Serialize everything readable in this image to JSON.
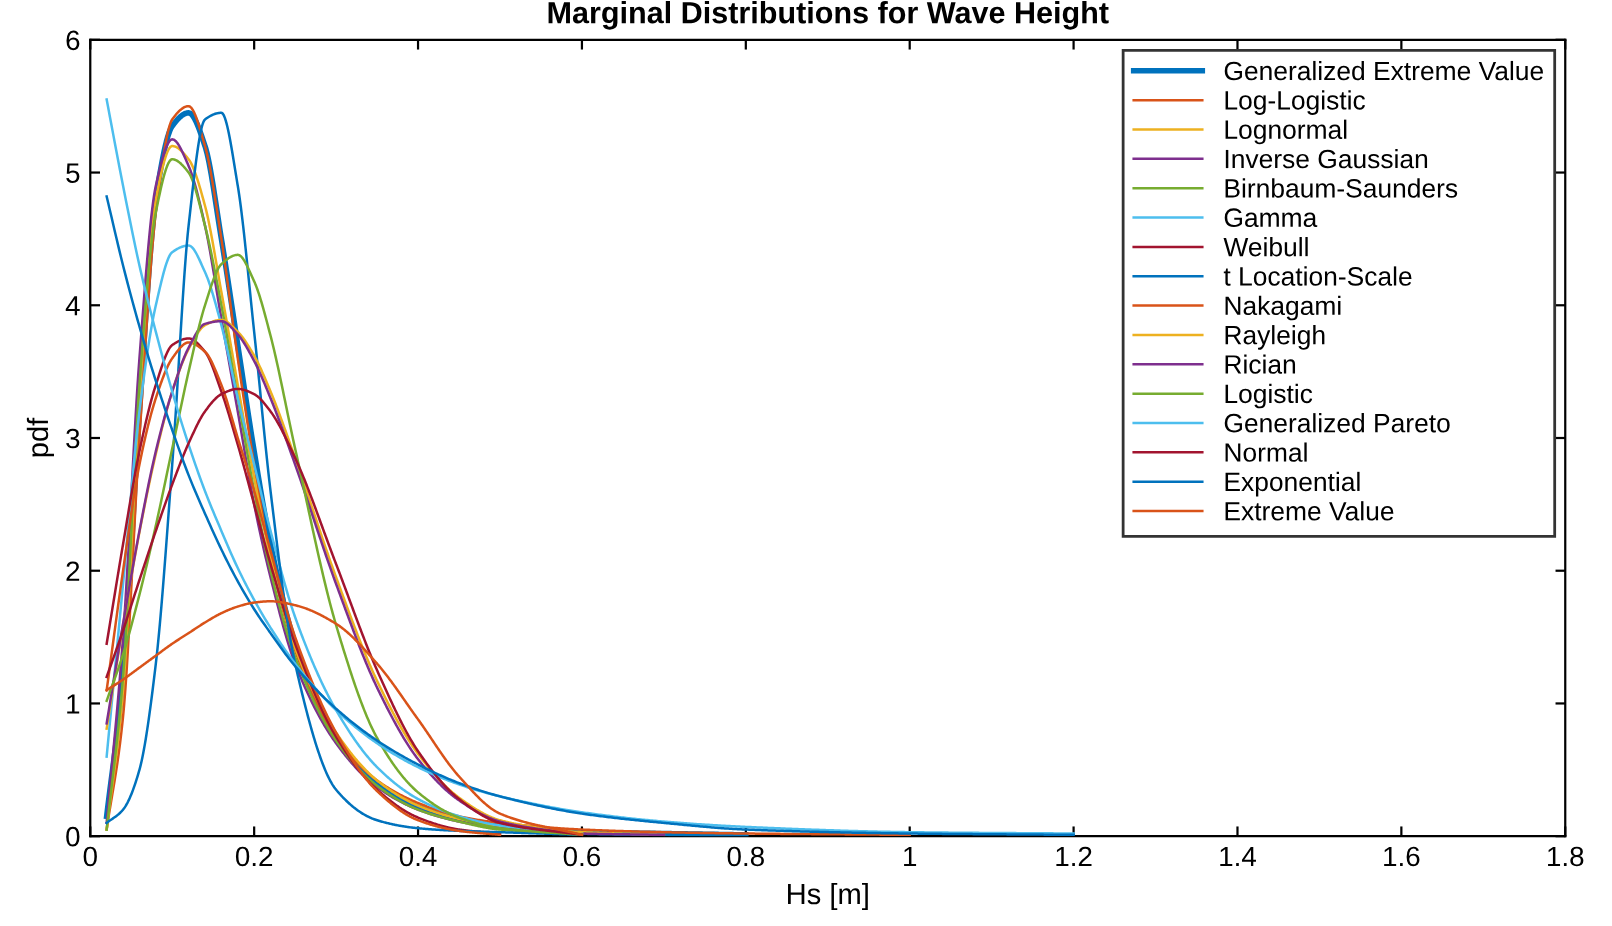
{
  "chart_data": {
    "type": "line",
    "title": "Marginal Distributions for Wave Height",
    "xlabel": "Hs [m]",
    "ylabel": "pdf",
    "xlim": [
      0,
      1.8
    ],
    "ylim": [
      0,
      6
    ],
    "xticks": [
      0,
      0.2,
      0.4,
      0.6,
      0.8,
      1,
      1.2,
      1.4,
      1.6,
      1.8
    ],
    "yticks": [
      0,
      1,
      2,
      3,
      4,
      5,
      6
    ],
    "grid": false,
    "legend": "top right",
    "marker": "none",
    "line_style": "solid",
    "x": [
      0.02,
      0.04,
      0.06,
      0.08,
      0.1,
      0.12,
      0.14,
      0.16,
      0.18,
      0.2,
      0.22,
      0.25,
      0.3,
      0.35,
      0.4,
      0.45,
      0.5,
      0.6,
      0.7,
      0.8,
      1.0,
      1.2
    ],
    "series": [
      {
        "name": "Generalized Extreme Value",
        "color": "#0072bd",
        "values": [
          0.15,
          1.2,
          3.2,
          4.8,
          5.35,
          5.45,
          5.2,
          4.5,
          3.7,
          2.9,
          2.2,
          1.45,
          0.75,
          0.4,
          0.22,
          0.13,
          0.08,
          0.03,
          0.02,
          0.01,
          null,
          null
        ]
      },
      {
        "name": "Log-Logistic",
        "color": "#d95319",
        "values": [
          0.05,
          0.9,
          3.0,
          4.7,
          5.4,
          5.5,
          5.2,
          4.5,
          3.6,
          2.8,
          2.1,
          1.4,
          0.75,
          0.42,
          0.25,
          0.15,
          0.1,
          0.05,
          0.03,
          0.02,
          0.01,
          null
        ]
      },
      {
        "name": "Lognormal",
        "color": "#edb120",
        "values": [
          0.05,
          1.1,
          3.3,
          4.8,
          5.2,
          5.1,
          4.75,
          4.1,
          3.4,
          2.7,
          2.1,
          1.42,
          0.78,
          0.42,
          0.23,
          0.13,
          0.07,
          0.03,
          0.01,
          null,
          null,
          null
        ]
      },
      {
        "name": "Inverse Gaussian",
        "color": "#7e2f8e",
        "values": [
          0.1,
          1.5,
          3.6,
          4.9,
          5.25,
          5.05,
          4.6,
          3.9,
          3.2,
          2.5,
          1.95,
          1.3,
          0.7,
          0.37,
          0.2,
          0.11,
          0.06,
          0.02,
          0.01,
          null,
          null,
          null
        ]
      },
      {
        "name": "Birnbaum-Saunders",
        "color": "#77ac30",
        "values": [
          0.05,
          1.2,
          3.4,
          4.7,
          5.1,
          5.0,
          4.6,
          4.0,
          3.3,
          2.6,
          2.0,
          1.35,
          0.72,
          0.38,
          0.2,
          0.11,
          0.05,
          0.02,
          null,
          null,
          null,
          null
        ]
      },
      {
        "name": "Gamma",
        "color": "#4dbeee",
        "values": [
          0.6,
          1.9,
          3.2,
          4.0,
          4.4,
          4.45,
          4.25,
          3.85,
          3.3,
          2.8,
          2.3,
          1.65,
          0.95,
          0.52,
          0.28,
          0.15,
          0.08,
          0.02,
          null,
          null,
          null,
          null
        ]
      },
      {
        "name": "Weibull",
        "color": "#a2142f",
        "values": [
          1.45,
          2.2,
          2.9,
          3.4,
          3.7,
          3.75,
          3.65,
          3.35,
          2.95,
          2.5,
          2.05,
          1.45,
          0.75,
          0.35,
          0.14,
          0.05,
          0.02,
          null,
          null,
          null,
          null,
          null
        ]
      },
      {
        "name": "t Location-Scale",
        "color": "#0072bd",
        "values": [
          0.1,
          0.2,
          0.5,
          1.3,
          2.8,
          4.6,
          5.4,
          5.45,
          4.9,
          3.8,
          2.6,
          1.3,
          0.35,
          0.12,
          0.06,
          0.04,
          0.03,
          0.01,
          null,
          null,
          null,
          null
        ]
      },
      {
        "name": "Nakagami",
        "color": "#d95319",
        "values": [
          1.1,
          2.0,
          2.8,
          3.3,
          3.6,
          3.72,
          3.65,
          3.4,
          3.0,
          2.6,
          2.15,
          1.5,
          0.78,
          0.34,
          0.12,
          0.04,
          0.01,
          null,
          null,
          null,
          null,
          null
        ]
      },
      {
        "name": "Rayleigh",
        "color": "#edb120",
        "values": [
          0.81,
          1.59,
          2.29,
          2.88,
          3.35,
          3.67,
          3.85,
          3.89,
          3.8,
          3.62,
          3.35,
          2.85,
          1.95,
          1.17,
          0.62,
          0.29,
          0.12,
          0.02,
          null,
          null,
          null,
          null
        ]
      },
      {
        "name": "Rician",
        "color": "#7e2f8e",
        "values": [
          0.85,
          1.6,
          2.3,
          2.9,
          3.35,
          3.68,
          3.86,
          3.88,
          3.78,
          3.58,
          3.3,
          2.8,
          1.9,
          1.12,
          0.58,
          0.27,
          0.11,
          0.01,
          null,
          null,
          null,
          null
        ]
      },
      {
        "name": "Logistic",
        "color": "#77ac30",
        "values": [
          1.02,
          1.37,
          1.82,
          2.34,
          2.92,
          3.5,
          4.0,
          4.31,
          4.38,
          4.18,
          3.77,
          2.92,
          1.59,
          0.74,
          0.33,
          0.14,
          0.06,
          0.01,
          null,
          null,
          null,
          null
        ]
      },
      {
        "name": "Generalized Pareto",
        "color": "#4dbeee",
        "values": [
          5.55,
          4.9,
          4.3,
          3.8,
          3.35,
          2.95,
          2.6,
          2.3,
          2.02,
          1.78,
          1.57,
          1.3,
          0.95,
          0.7,
          0.52,
          0.39,
          0.3,
          0.18,
          0.11,
          0.07,
          0.03,
          0.02
        ]
      },
      {
        "name": "Normal",
        "color": "#a2142f",
        "values": [
          1.2,
          1.55,
          1.93,
          2.3,
          2.65,
          2.96,
          3.2,
          3.33,
          3.37,
          3.33,
          3.2,
          2.85,
          2.05,
          1.25,
          0.64,
          0.28,
          0.1,
          0.01,
          null,
          null,
          null,
          null
        ]
      },
      {
        "name": "Exponential",
        "color": "#0072bd",
        "values": [
          4.82,
          4.3,
          3.84,
          3.43,
          3.06,
          2.72,
          2.43,
          2.16,
          1.92,
          1.71,
          1.53,
          1.28,
          0.96,
          0.72,
          0.54,
          0.4,
          0.3,
          0.17,
          0.1,
          0.05,
          0.02,
          0.01
        ]
      },
      {
        "name": "Extreme Value",
        "color": "#d95319",
        "values": [
          1.1,
          1.18,
          1.27,
          1.36,
          1.45,
          1.53,
          1.61,
          1.68,
          1.73,
          1.76,
          1.77,
          1.74,
          1.6,
          1.3,
          0.88,
          0.45,
          0.17,
          0.01,
          null,
          null,
          null,
          null
        ]
      }
    ]
  }
}
